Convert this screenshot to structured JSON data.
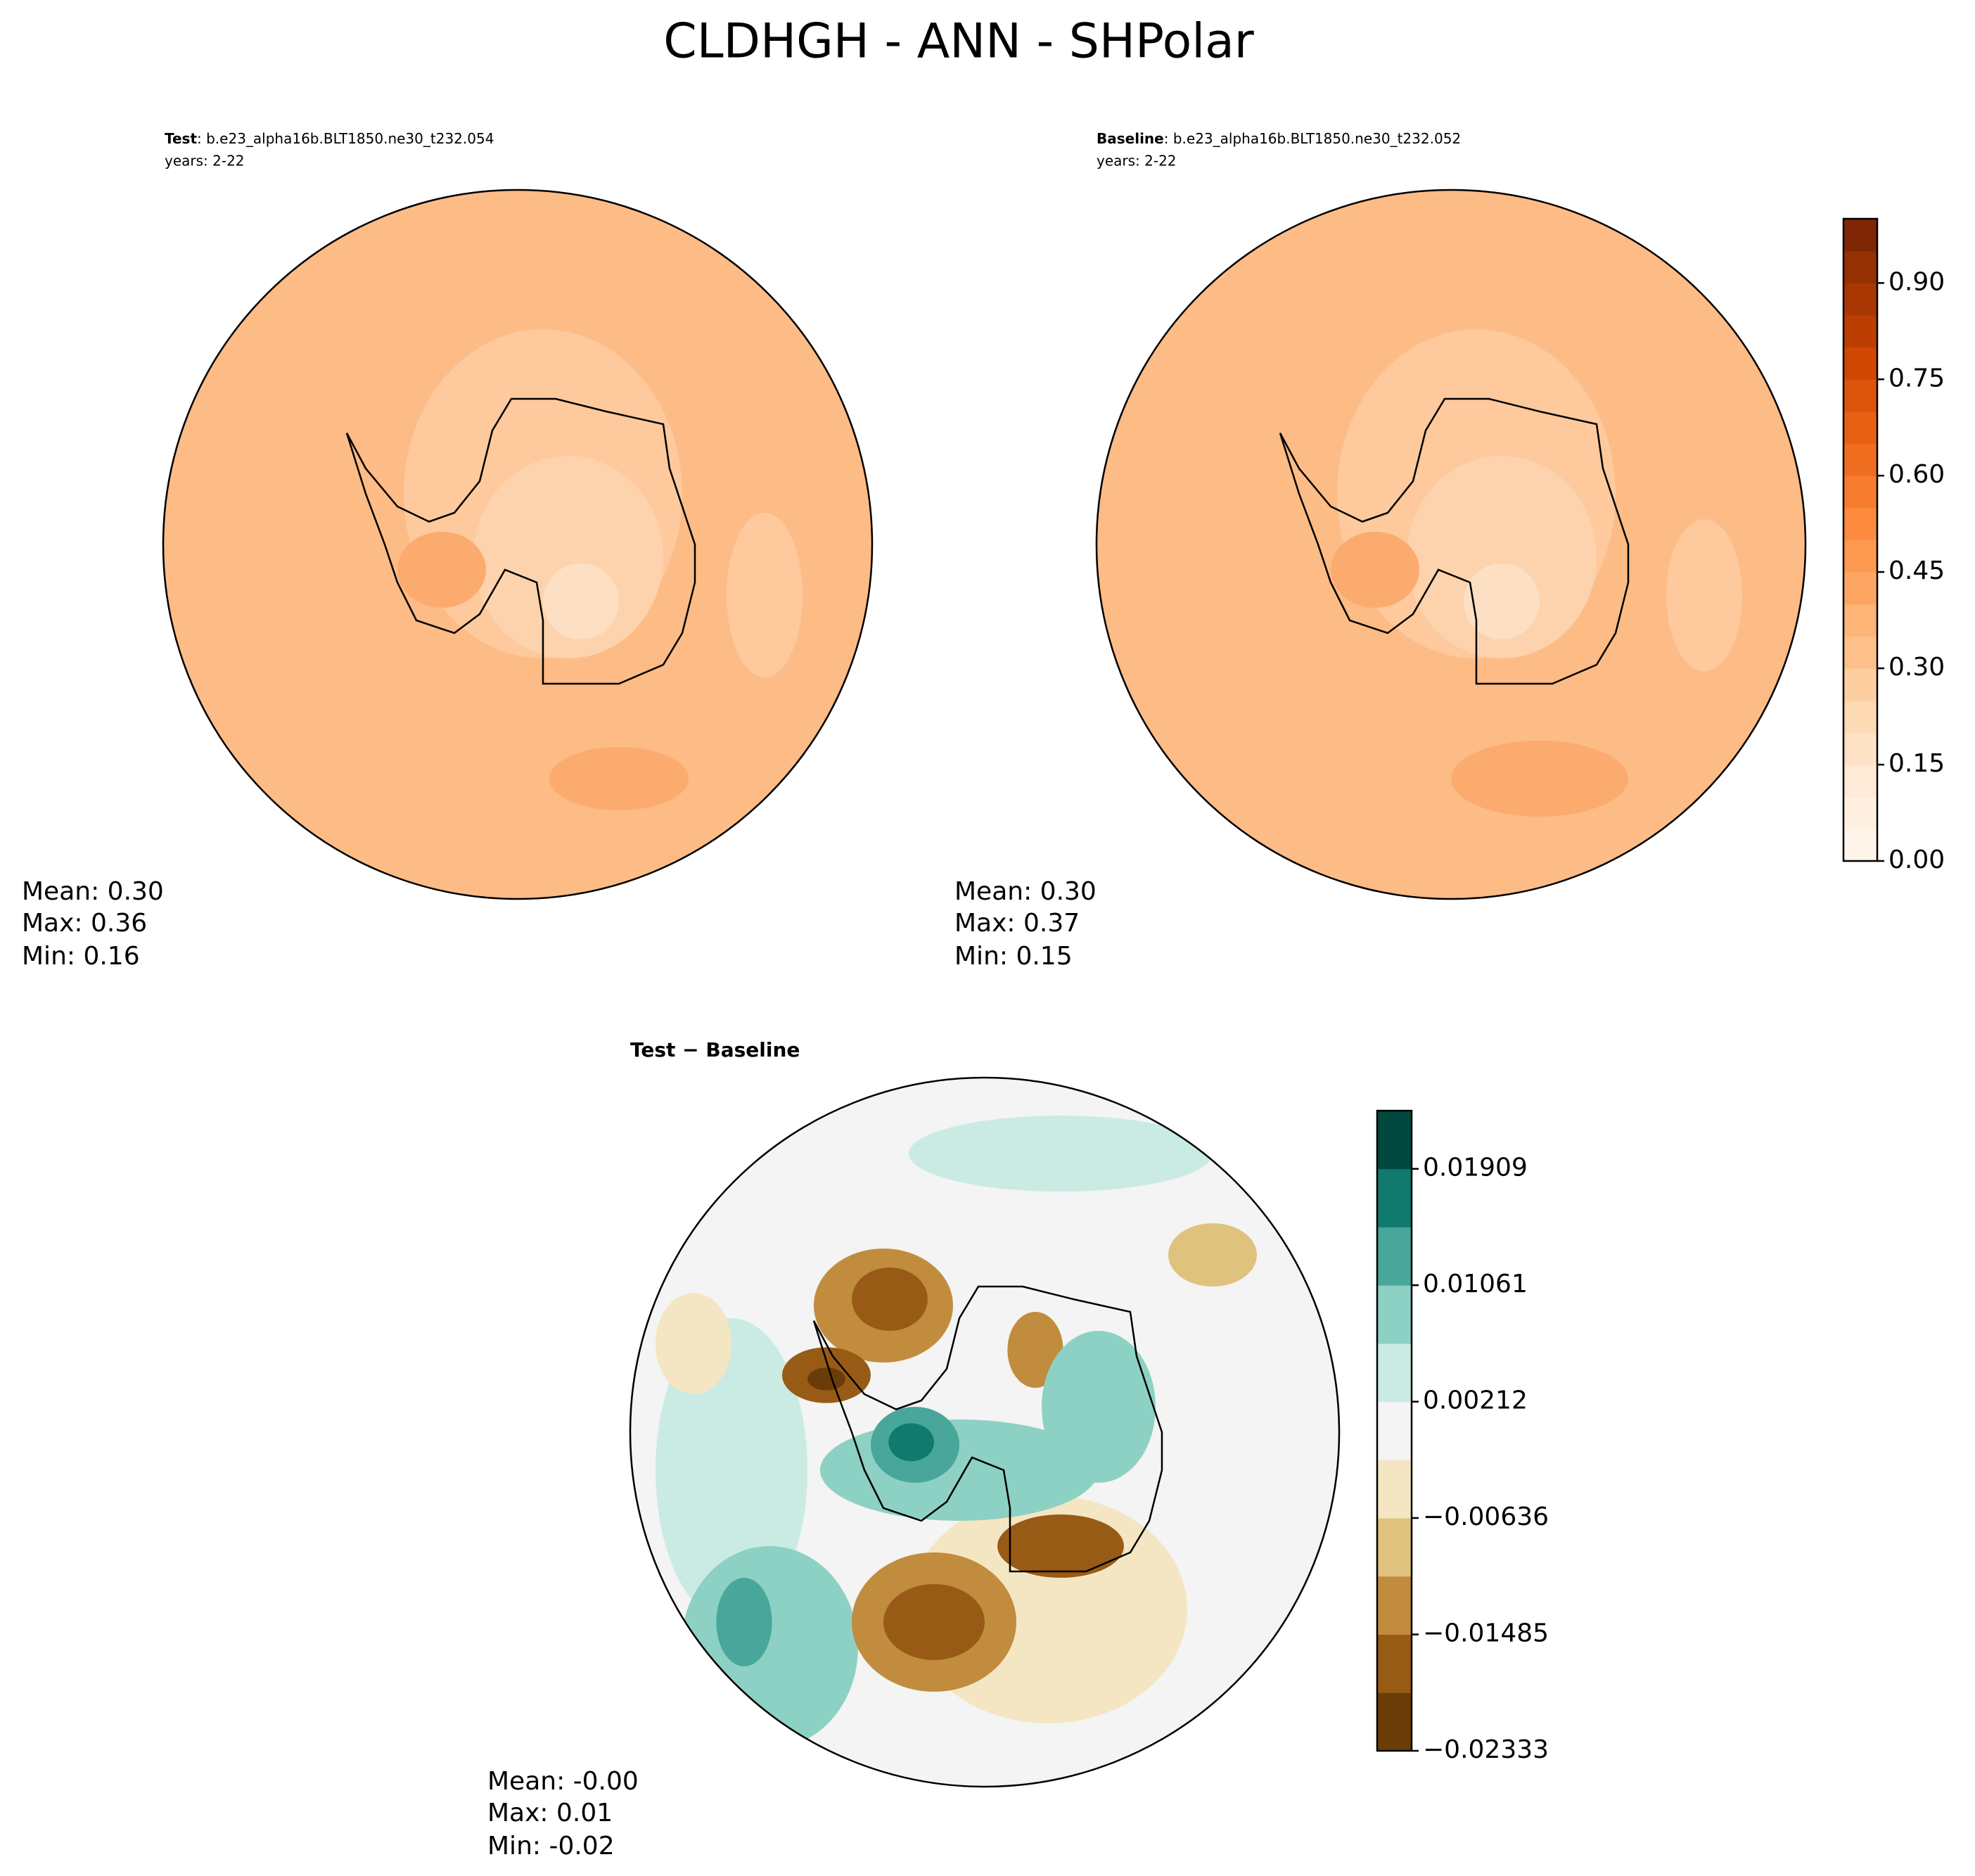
{
  "title": "CLDHGH - ANN - SHPolar",
  "panels": [
    {
      "label": "Test",
      "case": ": b.e23_alpha16b.BLT1850.ne30_t232.054",
      "years": "years: 2-22",
      "stats": [
        "Mean:  0.30",
        "Max:  0.36",
        "Min:  0.16"
      ]
    },
    {
      "label": "Baseline",
      "case": ": b.e23_alpha16b.BLT1850.ne30_t232.052",
      "years": "years: 2-22",
      "stats": [
        "Mean:  0.30",
        "Max:  0.37",
        "Min:  0.15"
      ]
    },
    {
      "label": "Test − Baseline",
      "stats": [
        "Mean: -0.00",
        "Max:  0.01",
        "Min: -0.02"
      ]
    }
  ],
  "colorbars": [
    {
      "lim": [
        0,
        1
      ],
      "ticks": [
        {
          "value": 0,
          "label": "0.00"
        },
        {
          "value": 0.15,
          "label": "0.15"
        },
        {
          "value": 0.3,
          "label": "0.30"
        },
        {
          "value": 0.45,
          "label": "0.45"
        },
        {
          "value": 0.6,
          "label": "0.60"
        },
        {
          "value": 0.75,
          "label": "0.75"
        },
        {
          "value": 0.9,
          "label": "0.90"
        }
      ],
      "colors": [
        "#fff5eb",
        "#fff0e2",
        "#feead6",
        "#fee2c6",
        "#fdd9b4",
        "#fdcea0",
        "#fdc08a",
        "#fdb477",
        "#fda664",
        "#fd9851",
        "#fc8a3f",
        "#f77c2e",
        "#f06e1f",
        "#e86112",
        "#dc540a",
        "#cf4703",
        "#bc3e02",
        "#a93703",
        "#953003",
        "#7f2704"
      ]
    },
    {
      "lim": [
        -0.02333,
        0.02333
      ],
      "ticks": [
        {
          "value": -0.02333,
          "label": "−0.02333"
        },
        {
          "value": -0.01485,
          "label": "−0.01485"
        },
        {
          "value": -0.00636,
          "label": "−0.00636"
        },
        0.00212,
        0.01061,
        0.01909
      ],
      "colors": [
        "#6a3d08",
        "#985b16",
        "#c28c3e",
        "#dfc27d",
        "#f5e6c3",
        "#f3f4f3",
        "#c9ebe3",
        "#8dd1c4",
        "#48a79a",
        "#117a6e",
        "#01493f"
      ]
    }
  ]
}
